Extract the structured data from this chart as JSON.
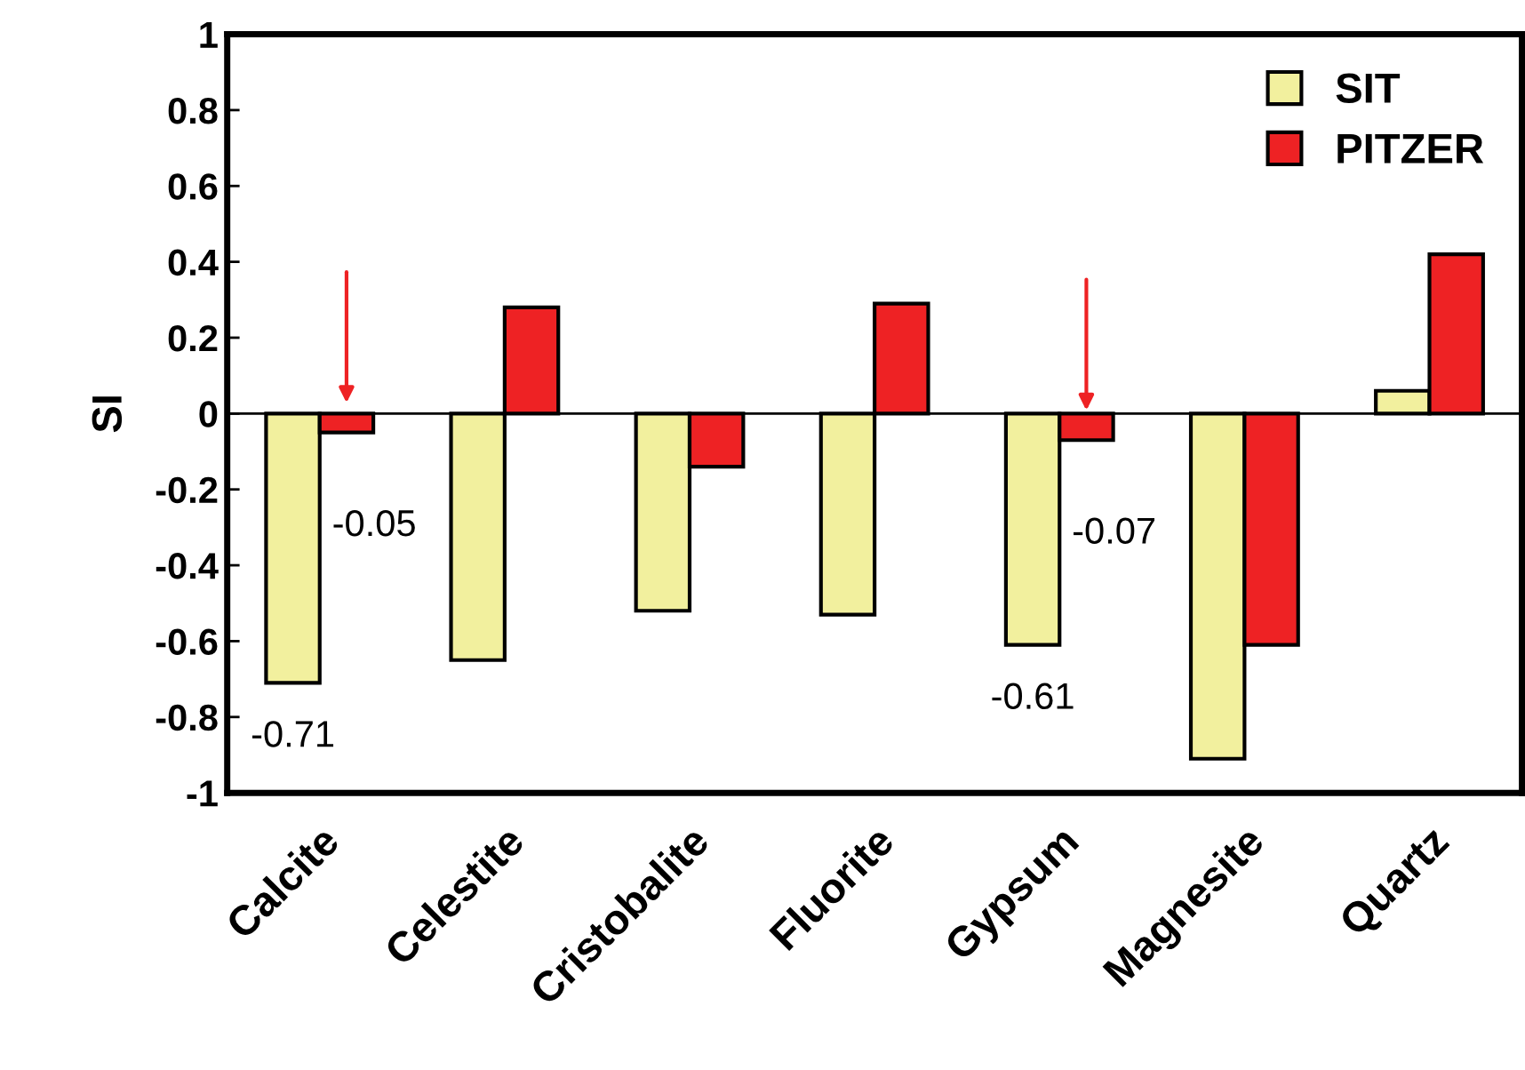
{
  "chart_data": {
    "type": "bar",
    "ylabel": "SI",
    "categories": [
      "Calcite",
      "Celestite",
      "Cristobalite",
      "Fluorite",
      "Gypsum",
      "Magnesite",
      "Quartz"
    ],
    "series": [
      {
        "name": "SIT",
        "color": "#f2f09e",
        "values": [
          -0.71,
          -0.65,
          -0.52,
          -0.53,
          -0.61,
          -0.91,
          0.06
        ]
      },
      {
        "name": "PITZER",
        "color": "#ee2224",
        "values": [
          -0.05,
          0.28,
          -0.14,
          0.29,
          -0.07,
          -0.61,
          0.42
        ]
      }
    ],
    "ylim": [
      -1,
      1
    ],
    "yticks": [
      -1,
      -0.8,
      -0.6,
      -0.4,
      -0.2,
      0,
      0.2,
      0.4,
      0.6,
      0.8,
      1
    ],
    "annotations": [
      {
        "text": "-0.05",
        "x": "Calcite",
        "y": -0.05
      },
      {
        "text": "-0.71",
        "x": "Calcite",
        "y": -0.71
      },
      {
        "text": "-0.07",
        "x": "Gypsum",
        "y": -0.07
      },
      {
        "text": "-0.61",
        "x": "Gypsum",
        "y": -0.61
      }
    ],
    "legend": "top right"
  }
}
